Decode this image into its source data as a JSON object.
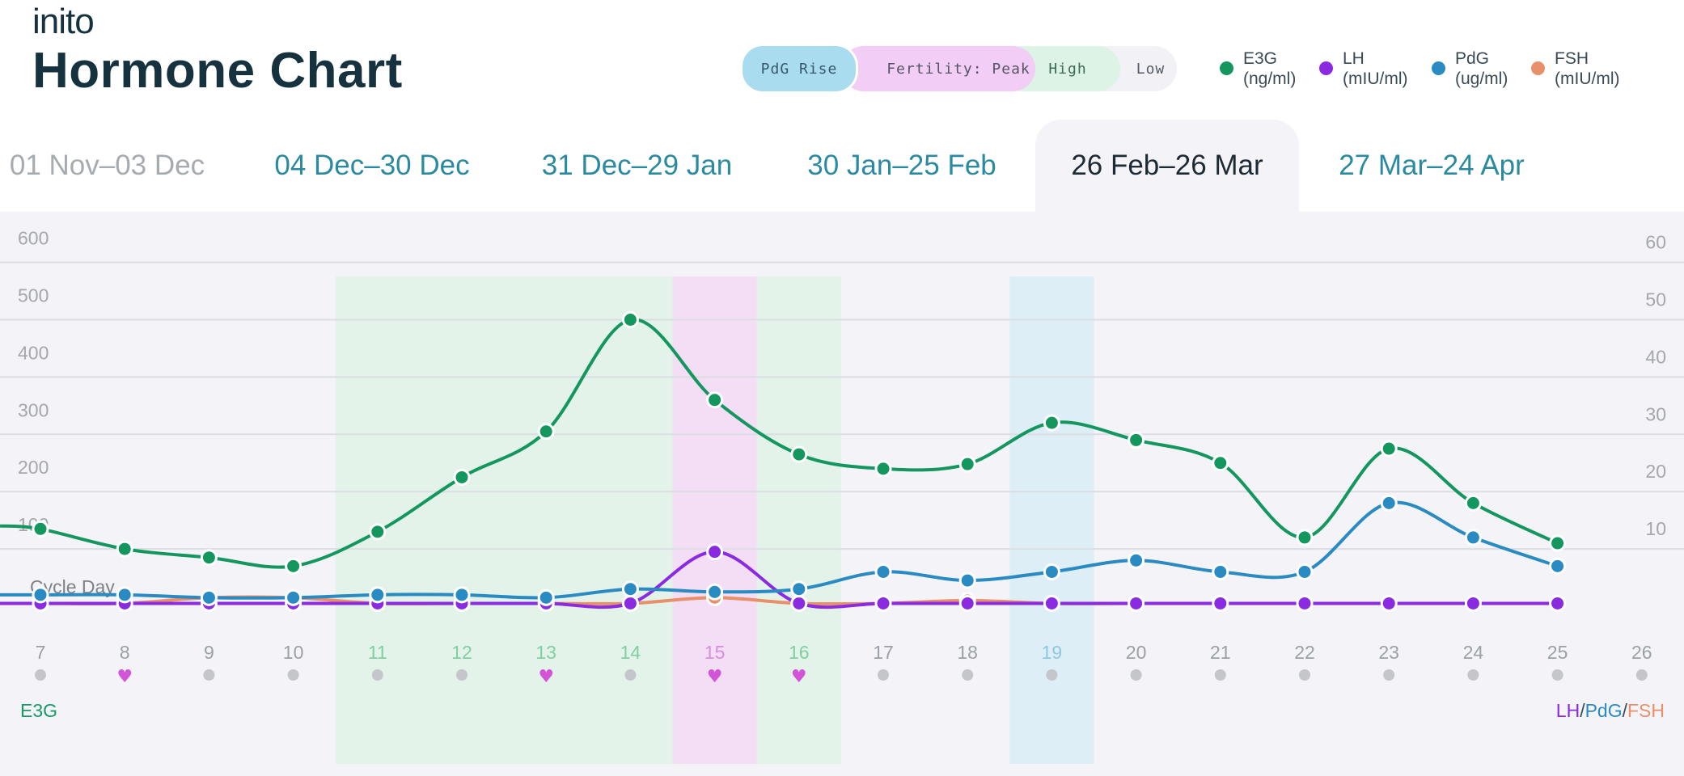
{
  "header": {
    "brand": "inito",
    "title": "Hormone Chart"
  },
  "status_pills": [
    {
      "label": "PdG Rise"
    },
    {
      "label": "Fertility: Peak"
    },
    {
      "label": "High"
    },
    {
      "label": "Low"
    }
  ],
  "legend": [
    {
      "name": "E3G",
      "unit": "(ng/ml)",
      "color": "#14965f"
    },
    {
      "name": "LH",
      "unit": "(mIU/ml)",
      "color": "#8a2be2"
    },
    {
      "name": "PdG",
      "unit": "(ug/ml)",
      "color": "#2a8ac2"
    },
    {
      "name": "FSH",
      "unit": "(mIU/ml)",
      "color": "#e8906a"
    }
  ],
  "tabs": [
    {
      "label": "01 Nov–03 Dec",
      "state": "past"
    },
    {
      "label": "04 Dec–30 Dec",
      "state": "link"
    },
    {
      "label": "31 Dec–29 Jan",
      "state": "link"
    },
    {
      "label": "30 Jan–25 Feb",
      "state": "link"
    },
    {
      "label": "26 Feb–26 Mar",
      "state": "active"
    },
    {
      "label": "27 Mar–24 Apr",
      "state": "link"
    }
  ],
  "chart_data": {
    "type": "line",
    "x_label": "Cycle Day",
    "left_axis_title": "E3G",
    "right_axis_title_parts": [
      "LH",
      "/",
      "PdG",
      "/",
      "FSH"
    ],
    "y_left_ticks": [
      100,
      200,
      300,
      400,
      500,
      600
    ],
    "y_right_ticks": [
      10,
      20,
      30,
      40,
      50,
      60
    ],
    "ylim_left": [
      0,
      600
    ],
    "ylim_right": [
      0,
      60
    ],
    "x": [
      7,
      8,
      9,
      10,
      11,
      12,
      13,
      14,
      15,
      16,
      17,
      18,
      19,
      20,
      21,
      22,
      23,
      24,
      25,
      26
    ],
    "day_markers": [
      "dot",
      "heart",
      "dot",
      "dot",
      "dot",
      "dot",
      "heart",
      "dot",
      "heart",
      "heart",
      "dot",
      "dot",
      "dot",
      "dot",
      "dot",
      "dot",
      "dot",
      "dot",
      "dot",
      "dot"
    ],
    "day_label_colors": {
      "default": "#9aa0a6",
      "high": "#7fcf9f",
      "peak": "#d88ee0",
      "pdg": "#8fc8e6"
    },
    "fertility_bands": [
      {
        "status": "High",
        "start_day": 11,
        "end_day": 14,
        "color": "#e3f3ea"
      },
      {
        "status": "Peak",
        "start_day": 15,
        "end_day": 15,
        "color": "#f3def6"
      },
      {
        "status": "High",
        "start_day": 16,
        "end_day": 16,
        "color": "#e3f3ea"
      },
      {
        "status": "PdG Rise",
        "start_day": 19,
        "end_day": 19,
        "color": "#ddeef6"
      }
    ],
    "series": [
      {
        "name": "E3G",
        "axis": "left",
        "color": "#14965f",
        "x": [
          7,
          8,
          9,
          10,
          11,
          12,
          13,
          14,
          15,
          16,
          17,
          18,
          19,
          20,
          21,
          22,
          23,
          24,
          25
        ],
        "values": [
          135,
          100,
          85,
          70,
          130,
          225,
          305,
          500,
          360,
          265,
          240,
          248,
          320,
          290,
          250,
          120,
          275,
          180,
          110
        ]
      },
      {
        "name": "LH",
        "axis": "right",
        "color": "#8a2be2",
        "x": [
          7,
          8,
          9,
          10,
          11,
          12,
          13,
          14,
          15,
          16,
          17,
          18,
          19,
          20,
          21,
          22,
          23,
          24,
          25
        ],
        "values": [
          0.5,
          0.5,
          0.5,
          0.5,
          0.5,
          0.5,
          0.5,
          0.5,
          9.5,
          0.5,
          0.5,
          0.5,
          0.5,
          0.5,
          0.5,
          0.5,
          0.5,
          0.5,
          0.5
        ]
      },
      {
        "name": "PdG",
        "axis": "right",
        "color": "#2a8ac2",
        "x": [
          7,
          8,
          9,
          10,
          11,
          12,
          13,
          14,
          15,
          16,
          17,
          18,
          19,
          20,
          21,
          22,
          23,
          24,
          25
        ],
        "values": [
          2.0,
          2.0,
          1.5,
          1.5,
          2.0,
          2.0,
          1.5,
          3.0,
          2.5,
          3.0,
          6.0,
          4.5,
          6.0,
          8.0,
          6.0,
          6.0,
          18.0,
          12.0,
          7.0
        ]
      },
      {
        "name": "FSH",
        "axis": "right",
        "color": "#e8906a",
        "x": [
          7,
          8,
          9,
          10,
          11,
          12,
          13,
          14,
          15,
          16,
          17,
          18,
          19,
          20,
          21,
          22,
          23,
          24,
          25
        ],
        "values": [
          0.5,
          0.5,
          1.5,
          1.5,
          0.5,
          0.5,
          0.5,
          0.5,
          1.5,
          0.5,
          0.5,
          1.0,
          0.5,
          0.5,
          0.5,
          0.5,
          0.5,
          0.5,
          0.5
        ]
      }
    ]
  }
}
